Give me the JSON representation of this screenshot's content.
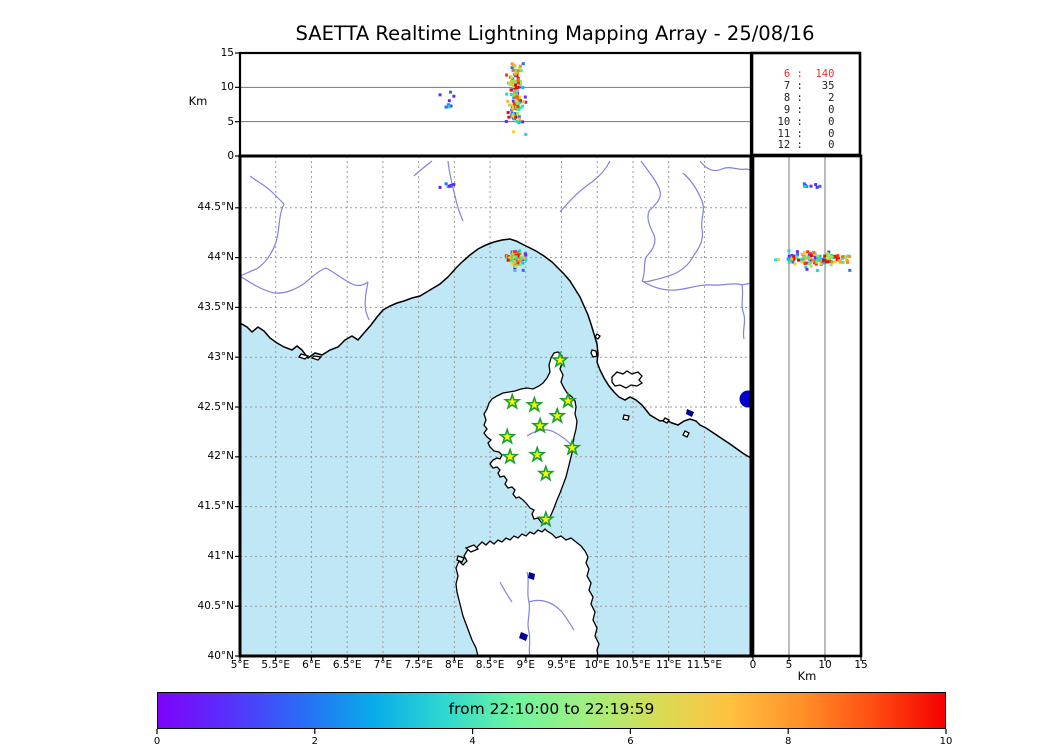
{
  "title": "SAETTA Realtime Lightning Mapping Array - 25/08/16",
  "panels": {
    "alt_lon": {
      "ylabel": "Km",
      "yticks": [
        {
          "v": 0,
          "label": "0"
        },
        {
          "v": 5,
          "label": "5"
        },
        {
          "v": 10,
          "label": "10"
        },
        {
          "v": 15,
          "label": "15"
        }
      ],
      "ylim": [
        0,
        15
      ],
      "gridlines_alt_km": [
        5,
        10
      ]
    },
    "map": {
      "lon_ticks": [
        {
          "v": 5,
          "label": "5°E"
        },
        {
          "v": 5.5,
          "label": "5.5°E"
        },
        {
          "v": 6,
          "label": "6°E"
        },
        {
          "v": 6.5,
          "label": "6.5°E"
        },
        {
          "v": 7,
          "label": "7°E"
        },
        {
          "v": 7.5,
          "label": "7.5°E"
        },
        {
          "v": 8,
          "label": "8°E"
        },
        {
          "v": 8.5,
          "label": "8.5°E"
        },
        {
          "v": 9,
          "label": "9°E"
        },
        {
          "v": 9.5,
          "label": "9.5°E"
        },
        {
          "v": 10,
          "label": "10°E"
        },
        {
          "v": 10.5,
          "label": "10.5°E"
        },
        {
          "v": 11,
          "label": "11°E"
        },
        {
          "v": 11.5,
          "label": "11.5°E"
        }
      ],
      "lat_ticks": [
        {
          "v": 40,
          "label": "40°N"
        },
        {
          "v": 40.5,
          "label": "40.5°N"
        },
        {
          "v": 41,
          "label": "41°N"
        },
        {
          "v": 41.5,
          "label": "41.5°N"
        },
        {
          "v": 42,
          "label": "42°N"
        },
        {
          "v": 42.5,
          "label": "42.5°N"
        },
        {
          "v": 43,
          "label": "43°N"
        },
        {
          "v": 43.5,
          "label": "43.5°N"
        },
        {
          "v": 44,
          "label": "44°N"
        },
        {
          "v": 44.5,
          "label": "44.5°N"
        }
      ],
      "lon_range": [
        5,
        12.15
      ],
      "lat_range": [
        40,
        45.02
      ]
    },
    "alt_lat": {
      "xlabel": "Km",
      "xticks": [
        {
          "v": 0,
          "label": "0"
        },
        {
          "v": 5,
          "label": "5"
        },
        {
          "v": 10,
          "label": "10"
        },
        {
          "v": 15,
          "label": "15"
        }
      ],
      "xlim": [
        0,
        15
      ],
      "gridlines_alt_km": [
        5,
        10
      ]
    },
    "station_count_table": {
      "rows": [
        {
          "key": "6",
          "value": "140",
          "highlight": true
        },
        {
          "key": "7",
          "value": "35",
          "highlight": false
        },
        {
          "key": "8",
          "value": "2",
          "highlight": false
        },
        {
          "key": "9",
          "value": "0",
          "highlight": false
        },
        {
          "key": "10",
          "value": "0",
          "highlight": false
        },
        {
          "key": "11",
          "value": "0",
          "highlight": false
        },
        {
          "key": "12",
          "value": "0",
          "highlight": false
        }
      ],
      "highlight_color": "#e83030",
      "text_color": "#222222"
    }
  },
  "colorbar": {
    "label": "from 22:10:00 to 22:19:59",
    "ticks": [
      {
        "v": 0,
        "label": "0"
      },
      {
        "v": 2,
        "label": "2"
      },
      {
        "v": 4,
        "label": "4"
      },
      {
        "v": 6,
        "label": "6"
      },
      {
        "v": 8,
        "label": "8"
      },
      {
        "v": 10,
        "label": "10"
      }
    ],
    "vmin": 0,
    "vmax": 10,
    "gradient_stops": [
      "#7e03fa",
      "#5731fb",
      "#2a6cf6",
      "#09abeb",
      "#2fd8cf",
      "#6ef49f",
      "#a0f07e",
      "#d8dc55",
      "#ffc140",
      "#ff9028",
      "#ff4d12",
      "#f40000"
    ]
  },
  "chart_data": {
    "type": "scatter",
    "description": "Lightning VHF sources colored by time (22:10:00-22:19:59), projected on lon-alt, lon-lat map and alt-lat panels",
    "palettes": {
      "early": [
        "#7a22e8",
        "#5533f8",
        "#2a6cf4",
        "#0d9ef2",
        "#00c3f0",
        "#19d9de"
      ],
      "late": [
        "#27ddbc",
        "#52e692",
        "#86ec62",
        "#bce647",
        "#e8d334",
        "#fdb62a",
        "#ff921d",
        "#ff6410",
        "#f93507",
        "#e60d00"
      ]
    },
    "storms": [
      {
        "name": "main-storm-early",
        "count": 48,
        "seed": 101,
        "lon": {
          "mean": 8.86,
          "sigma": 0.075,
          "min": 8.7,
          "max": 9.0
        },
        "lat": {
          "mean": 43.99,
          "sigma": 0.05,
          "min": 43.87,
          "max": 44.12
        },
        "alt": {
          "mean": 8.8,
          "sigma": 2.6,
          "min": 2.0,
          "max": 14.8
        },
        "palette": "early"
      },
      {
        "name": "main-storm-late",
        "count": 92,
        "seed": 202,
        "lon": {
          "mean": 8.85,
          "sigma": 0.04,
          "min": 8.72,
          "max": 8.97
        },
        "lat": {
          "mean": 43.99,
          "sigma": 0.03,
          "min": 43.9,
          "max": 44.08
        },
        "alt": {
          "mean": 9.2,
          "sigma": 2.2,
          "min": 2.2,
          "max": 14.5
        },
        "palette": "late"
      },
      {
        "name": "west-cell",
        "count": 8,
        "seed": 303,
        "lon": {
          "mean": 7.91,
          "sigma": 0.05,
          "min": 7.8,
          "max": 8.0
        },
        "lat": {
          "mean": 44.72,
          "sigma": 0.015,
          "min": 44.68,
          "max": 44.76
        },
        "alt": {
          "mean": 8.4,
          "sigma": 1.4,
          "min": 6.0,
          "max": 10.6
        },
        "palette": "early"
      }
    ],
    "stations_lon_lat": [
      [
        9.48,
        42.97
      ],
      [
        8.81,
        42.55
      ],
      [
        9.12,
        42.52
      ],
      [
        9.59,
        42.56
      ],
      [
        9.44,
        42.41
      ],
      [
        9.2,
        42.31
      ],
      [
        8.74,
        42.2
      ],
      [
        9.65,
        42.09
      ],
      [
        8.78,
        42.0
      ],
      [
        9.16,
        42.02
      ],
      [
        9.28,
        41.83
      ],
      [
        9.28,
        41.37
      ]
    ],
    "landmark_dot": {
      "lon": 12.11,
      "lat": 42.58,
      "color": "#0000cc"
    }
  },
  "colors": {
    "sea": "#bfe7f6",
    "land": "#ffffff",
    "river": "#8282dd",
    "lake": "#000099",
    "grid": "#9a9a9a",
    "panel_grid": "#777777",
    "station_fill": "#f8f800",
    "station_stroke": "#18a030",
    "frame": "#000000"
  }
}
